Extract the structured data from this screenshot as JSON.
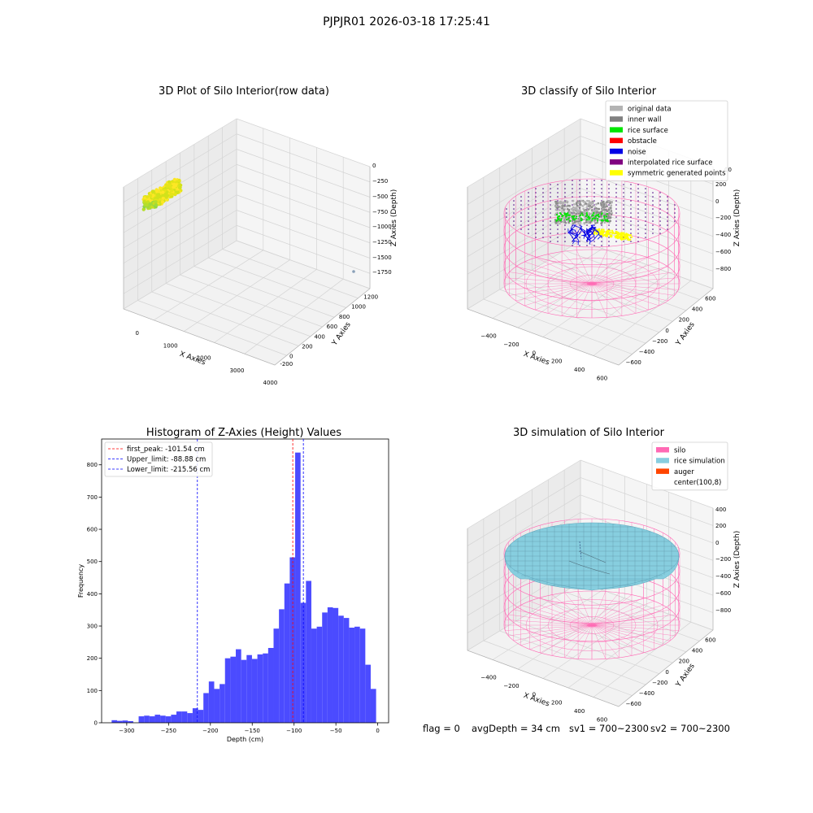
{
  "figure": {
    "suptitle": "PJPJR01 2026-03-18 17:25:41",
    "status": {
      "flag": "flag = 0",
      "avg_depth": "avgDepth = 34 cm",
      "sv1": "sv1 = 700~2300",
      "sv2": "sv2 = 700~2300"
    }
  },
  "chart_data": [
    {
      "type": "scatter",
      "projection": "3d",
      "title": "3D Plot of Silo Interior(row data)",
      "xlabel": "X Axies",
      "ylabel": "Y Axies",
      "zlabel": "Z Axies (Depth)",
      "xlim": [
        -400,
        4100
      ],
      "ylim": [
        -250,
        1300
      ],
      "zlim": [
        -1850,
        50
      ],
      "x_ticks": [
        "0",
        "1000",
        "2000",
        "3000",
        "4000"
      ],
      "y_ticks": [
        "-200",
        "0",
        "200",
        "400",
        "600",
        "800",
        "1000",
        "1200"
      ],
      "z_ticks": [
        "0",
        "−250",
        "−500",
        "−750",
        "−1000",
        "−1250",
        "−1500",
        "−1750"
      ],
      "colormap": [
        "#440154",
        "#3b528b",
        "#21918c",
        "#5ec962",
        "#fde725"
      ],
      "point_cluster": {
        "x_range": [
          -300,
          300
        ],
        "y_range": [
          800,
          1200
        ],
        "z_range": [
          -350,
          0
        ]
      },
      "outlier": {
        "x": 3900,
        "y": 100,
        "z": -1800
      }
    },
    {
      "type": "scatter",
      "projection": "3d",
      "title": "3D classify of Silo Interior",
      "xlabel": "X Axies",
      "ylabel": "Y Axies",
      "zlabel": "Z Axies (Depth)",
      "xlim": [
        -500,
        750
      ],
      "ylim": [
        -650,
        700
      ],
      "zlim": [
        -900,
        450
      ],
      "x_ticks": [
        "−400",
        "−200",
        "0",
        "200",
        "400",
        "600"
      ],
      "y_ticks": [
        "−600",
        "−400",
        "−200",
        "0",
        "200",
        "400",
        "600"
      ],
      "z_ticks": [
        "−800",
        "−600",
        "−400",
        "−200",
        "0",
        "200",
        "400"
      ],
      "z_tick_top_partial": "00",
      "legend_position": "upper right",
      "legend": [
        {
          "label": "original data",
          "color": "#b3b3b3"
        },
        {
          "label": "inner wall",
          "color": "#808080"
        },
        {
          "label": "rice surface",
          "color": "#00e600"
        },
        {
          "label": "obstacle",
          "color": "#ff0000"
        },
        {
          "label": "noise",
          "color": "#0000e6"
        },
        {
          "label": "interpolated rice surface",
          "color": "#800080"
        },
        {
          "label": "symmetric generated points",
          "color": "#ffff00"
        }
      ],
      "silo": {
        "radius": 500,
        "z_top": -200,
        "z_bottom": -900,
        "color": "#ff69b4"
      }
    },
    {
      "type": "bar",
      "subtype": "histogram",
      "title": "Histogram of Z-Axies (Height) Values",
      "xlabel": "Depth (cm)",
      "ylabel": "Frequency",
      "xlim": [
        -330,
        13
      ],
      "ylim": [
        0,
        880
      ],
      "x_ticks": [
        -300,
        -250,
        -200,
        -150,
        -100,
        -50,
        0
      ],
      "x_tick_labels": [
        "−300",
        "−250",
        "−200",
        "−150",
        "−100",
        "−50",
        "0"
      ],
      "y_ticks": [
        0,
        100,
        200,
        300,
        400,
        500,
        600,
        700,
        800
      ],
      "y_tick_labels": [
        "0",
        "100",
        "200",
        "300",
        "400",
        "500",
        "600",
        "700",
        "800"
      ],
      "bar_color": "#4b4bff",
      "bin_start": -318,
      "bin_width": 6.45,
      "values": [
        8,
        6,
        7,
        5,
        0,
        20,
        22,
        20,
        25,
        22,
        20,
        25,
        35,
        35,
        30,
        45,
        40,
        92,
        128,
        105,
        120,
        200,
        205,
        228,
        195,
        210,
        198,
        212,
        215,
        232,
        292,
        352,
        432,
        513,
        838,
        372,
        440,
        292,
        298,
        342,
        358,
        356,
        332,
        325,
        295,
        298,
        292,
        180,
        105
      ],
      "vlines": [
        {
          "label": "first_peak: -101.54 cm",
          "x": -101.54,
          "color": "#ff0000"
        },
        {
          "label": "Upper_limit: -88.88 cm",
          "x": -88.88,
          "color": "#0000ff"
        },
        {
          "label": "Lower_limit: -215.56 cm",
          "x": -215.56,
          "color": "#0000ff"
        }
      ],
      "legend_position": "upper left"
    },
    {
      "type": "surface",
      "projection": "3d",
      "title": "3D simulation of Silo Interior",
      "xlabel": "X Axies",
      "ylabel": "Y Axies",
      "zlabel": "Z Axies (Depth)",
      "xlim": [
        -500,
        750
      ],
      "ylim": [
        -650,
        700
      ],
      "zlim": [
        -900,
        450
      ],
      "x_ticks": [
        "−400",
        "−200",
        "0",
        "200",
        "400",
        "600"
      ],
      "y_ticks": [
        "−600",
        "−400",
        "−200",
        "0",
        "200",
        "400",
        "600"
      ],
      "z_ticks": [
        "−800",
        "−600",
        "−400",
        "−200",
        "0",
        "200",
        "400"
      ],
      "legend_position": "upper right",
      "legend": [
        {
          "label": "silo",
          "color": "#ff69b4"
        },
        {
          "label": "rice simulation",
          "color": "#87cedf"
        },
        {
          "label": "auger",
          "color": "#ff4500"
        },
        {
          "label": "center(100,8)",
          "color": "#ffffff"
        }
      ],
      "silo": {
        "radius": 500,
        "z_top": -100,
        "z_bottom": -900,
        "color": "#ff69b4"
      },
      "surface_color": "#87cedf",
      "surface_level": -150
    }
  ]
}
